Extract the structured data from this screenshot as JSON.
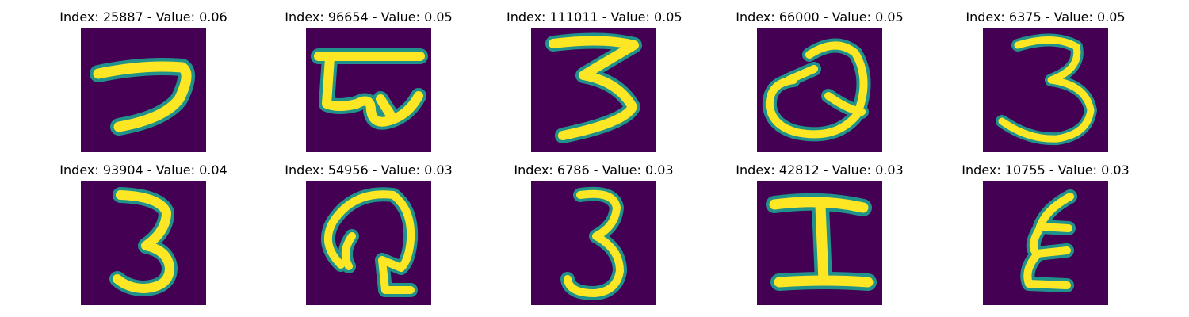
{
  "colors": {
    "background": "#440154",
    "stroke_mid": "#21918c",
    "stroke_core": "#fde725"
  },
  "panels": [
    {
      "title": "Index: 25887 - Value: 0.06",
      "glyph": "seven-like-hook"
    },
    {
      "title": "Index: 96654 - Value: 0.05",
      "glyph": "bar-with-loops"
    },
    {
      "title": "Index: 111011 - Value: 0.05",
      "glyph": "three-zigzag"
    },
    {
      "title": "Index: 66000 - Value: 0.05",
      "glyph": "looped-q"
    },
    {
      "title": "Index: 6375 - Value: 0.05",
      "glyph": "three"
    },
    {
      "title": "Index: 93904 - Value: 0.04",
      "glyph": "three-narrow"
    },
    {
      "title": "Index: 54956 - Value: 0.03",
      "glyph": "hook-loop"
    },
    {
      "title": "Index: 6786 - Value: 0.03",
      "glyph": "three-tall"
    },
    {
      "title": "Index: 42812 - Value: 0.03",
      "glyph": "capital-i"
    },
    {
      "title": "Index: 10755 - Value: 0.03",
      "glyph": "epsilon-like"
    }
  ]
}
